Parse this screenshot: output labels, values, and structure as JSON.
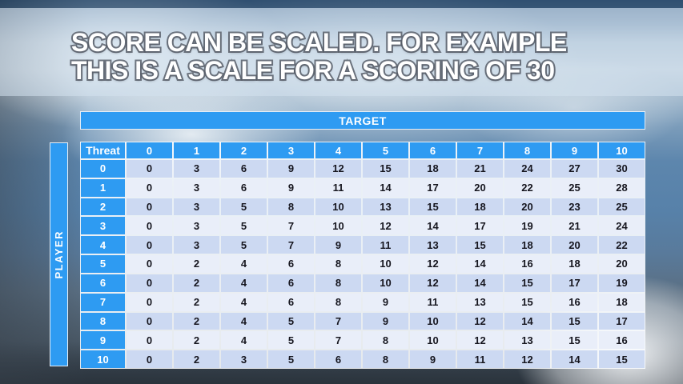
{
  "slide": {
    "title_line1": "SCORE CAN BE SCALED. FOR EXAMPLE",
    "title_line2": "THIS IS A SCALE FOR A SCORING OF 30"
  },
  "table": {
    "target_label": "TARGET",
    "player_label": "PLAYER",
    "corner_label": "Threat",
    "column_headers": [
      "0",
      "1",
      "2",
      "3",
      "4",
      "5",
      "6",
      "7",
      "8",
      "9",
      "10"
    ],
    "row_headers": [
      "0",
      "1",
      "2",
      "3",
      "4",
      "5",
      "6",
      "7",
      "8",
      "9",
      "10"
    ],
    "rows": [
      [
        0,
        3,
        6,
        9,
        12,
        15,
        18,
        21,
        24,
        27,
        30
      ],
      [
        0,
        3,
        6,
        9,
        11,
        14,
        17,
        20,
        22,
        25,
        28
      ],
      [
        0,
        3,
        5,
        8,
        10,
        13,
        15,
        18,
        20,
        23,
        25
      ],
      [
        0,
        3,
        5,
        7,
        10,
        12,
        14,
        17,
        19,
        21,
        24
      ],
      [
        0,
        3,
        5,
        7,
        9,
        11,
        13,
        15,
        18,
        20,
        22
      ],
      [
        0,
        2,
        4,
        6,
        8,
        10,
        12,
        14,
        16,
        18,
        20
      ],
      [
        0,
        2,
        4,
        6,
        8,
        10,
        12,
        14,
        15,
        17,
        19
      ],
      [
        0,
        2,
        4,
        6,
        8,
        9,
        11,
        13,
        15,
        16,
        18
      ],
      [
        0,
        2,
        4,
        5,
        7,
        9,
        10,
        12,
        14,
        15,
        17
      ],
      [
        0,
        2,
        4,
        5,
        7,
        8,
        10,
        12,
        13,
        15,
        16
      ],
      [
        0,
        2,
        3,
        5,
        6,
        8,
        9,
        11,
        12,
        14,
        15
      ]
    ]
  },
  "colors": {
    "accent_blue": "#2E9BF2",
    "row_even": "#CCD9F2",
    "row_odd": "#E9EEF9",
    "cell_text": "#16161F",
    "header_text": "#FFFFFF",
    "top_bar": "#2C4A66",
    "title_text": "#FFFFFF"
  }
}
